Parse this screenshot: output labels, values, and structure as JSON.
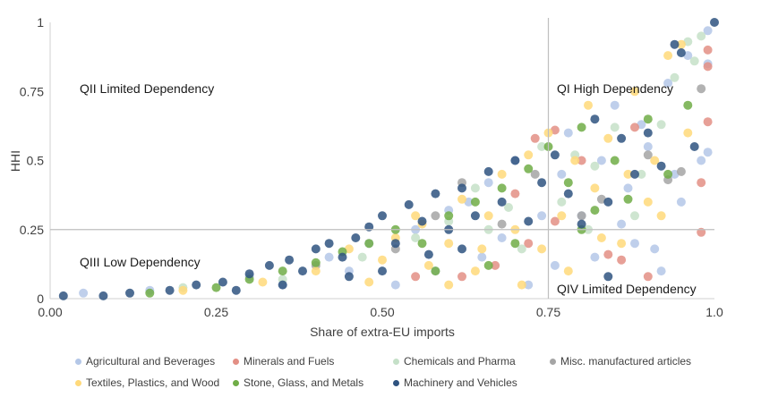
{
  "chart_data": {
    "type": "scatter",
    "title": "",
    "xlabel": "Share of extra-EU imports",
    "ylabel": "HHI",
    "xlim": [
      0,
      1
    ],
    "ylim": [
      0,
      1
    ],
    "x_ticks": [
      "0.00",
      "0.25",
      "0.50",
      "0.75",
      "1.0"
    ],
    "x_tick_values": [
      0,
      0.25,
      0.5,
      0.75,
      1.0
    ],
    "y_ticks": [
      "0",
      "0.25",
      "0.5",
      "0.75",
      "1"
    ],
    "y_tick_values": [
      0,
      0.25,
      0.5,
      0.75,
      1
    ],
    "reference_lines": {
      "x": 0.75,
      "y": 0.25
    },
    "quadrants": {
      "q1": "QI High Dependency",
      "q2": "QII Limited Dependency",
      "q3": "QIII Low Dependency",
      "q4": "QIV Limited Dependency"
    },
    "legend_position": "bottom",
    "series": [
      {
        "name": "Agricultural and Beverages",
        "color": "#b4c7e7",
        "points": [
          [
            0.05,
            0.02
          ],
          [
            0.15,
            0.03
          ],
          [
            0.3,
            0.08
          ],
          [
            0.42,
            0.15
          ],
          [
            0.48,
            0.2
          ],
          [
            0.55,
            0.25
          ],
          [
            0.6,
            0.32
          ],
          [
            0.63,
            0.35
          ],
          [
            0.66,
            0.42
          ],
          [
            0.7,
            0.5
          ],
          [
            0.72,
            0.05
          ],
          [
            0.78,
            0.6
          ],
          [
            0.8,
            0.3
          ],
          [
            0.82,
            0.15
          ],
          [
            0.85,
            0.7
          ],
          [
            0.87,
            0.4
          ],
          [
            0.88,
            0.2
          ],
          [
            0.9,
            0.55
          ],
          [
            0.92,
            0.1
          ],
          [
            0.93,
            0.78
          ],
          [
            0.95,
            0.35
          ],
          [
            0.96,
            0.88
          ],
          [
            0.98,
            0.5
          ],
          [
            0.99,
            0.97
          ],
          [
            0.99,
            0.85
          ],
          [
            0.99,
            0.53
          ],
          [
            0.91,
            0.18
          ],
          [
            0.86,
            0.27
          ],
          [
            0.76,
            0.12
          ],
          [
            0.74,
            0.3
          ],
          [
            0.68,
            0.22
          ],
          [
            0.58,
            0.1
          ],
          [
            0.52,
            0.05
          ],
          [
            0.45,
            0.1
          ],
          [
            0.35,
            0.05
          ],
          [
            0.83,
            0.5
          ],
          [
            0.89,
            0.63
          ],
          [
            0.94,
            0.45
          ],
          [
            0.77,
            0.45
          ],
          [
            0.65,
            0.15
          ]
        ]
      },
      {
        "name": "Minerals and Fuels",
        "color": "#e38f85",
        "points": [
          [
            0.62,
            0.08
          ],
          [
            0.67,
            0.12
          ],
          [
            0.72,
            0.2
          ],
          [
            0.76,
            0.28
          ],
          [
            0.8,
            0.5
          ],
          [
            0.84,
            0.16
          ],
          [
            0.86,
            0.14
          ],
          [
            0.9,
            0.08
          ],
          [
            0.98,
            0.42
          ],
          [
            0.99,
            0.64
          ],
          [
            0.99,
            0.84
          ],
          [
            0.99,
            0.9
          ],
          [
            0.98,
            0.24
          ],
          [
            0.7,
            0.38
          ],
          [
            0.55,
            0.08
          ],
          [
            0.73,
            0.58
          ],
          [
            0.76,
            0.61
          ],
          [
            0.88,
            0.62
          ]
        ]
      },
      {
        "name": "Chemicals and Pharma",
        "color": "#c5e0c8",
        "points": [
          [
            0.2,
            0.04
          ],
          [
            0.35,
            0.07
          ],
          [
            0.47,
            0.15
          ],
          [
            0.55,
            0.22
          ],
          [
            0.6,
            0.28
          ],
          [
            0.64,
            0.4
          ],
          [
            0.69,
            0.33
          ],
          [
            0.74,
            0.55
          ],
          [
            0.79,
            0.52
          ],
          [
            0.82,
            0.48
          ],
          [
            0.85,
            0.62
          ],
          [
            0.89,
            0.45
          ],
          [
            0.92,
            0.63
          ],
          [
            0.94,
            0.8
          ],
          [
            0.96,
            0.93
          ],
          [
            0.97,
            0.86
          ],
          [
            0.98,
            0.95
          ],
          [
            0.88,
            0.3
          ],
          [
            0.81,
            0.25
          ],
          [
            0.77,
            0.35
          ],
          [
            0.71,
            0.18
          ],
          [
            0.66,
            0.25
          ]
        ]
      },
      {
        "name": "Misc. manufactured articles",
        "color": "#a5a5a5",
        "points": [
          [
            0.4,
            0.12
          ],
          [
            0.52,
            0.18
          ],
          [
            0.58,
            0.3
          ],
          [
            0.62,
            0.42
          ],
          [
            0.68,
            0.27
          ],
          [
            0.73,
            0.45
          ],
          [
            0.83,
            0.36
          ],
          [
            0.9,
            0.52
          ],
          [
            0.95,
            0.46
          ],
          [
            0.98,
            0.76
          ],
          [
            0.93,
            0.43
          ],
          [
            0.8,
            0.3
          ]
        ]
      },
      {
        "name": "Textiles, Plastics, and Wood",
        "color": "#ffd97a",
        "points": [
          [
            0.2,
            0.03
          ],
          [
            0.32,
            0.06
          ],
          [
            0.4,
            0.1
          ],
          [
            0.45,
            0.18
          ],
          [
            0.5,
            0.14
          ],
          [
            0.52,
            0.22
          ],
          [
            0.55,
            0.3
          ],
          [
            0.57,
            0.12
          ],
          [
            0.6,
            0.2
          ],
          [
            0.62,
            0.36
          ],
          [
            0.64,
            0.1
          ],
          [
            0.66,
            0.3
          ],
          [
            0.68,
            0.45
          ],
          [
            0.7,
            0.25
          ],
          [
            0.72,
            0.52
          ],
          [
            0.74,
            0.18
          ],
          [
            0.75,
            0.6
          ],
          [
            0.77,
            0.3
          ],
          [
            0.79,
            0.5
          ],
          [
            0.81,
            0.7
          ],
          [
            0.82,
            0.4
          ],
          [
            0.84,
            0.58
          ],
          [
            0.86,
            0.2
          ],
          [
            0.88,
            0.75
          ],
          [
            0.9,
            0.35
          ],
          [
            0.91,
            0.5
          ],
          [
            0.93,
            0.88
          ],
          [
            0.95,
            0.92
          ],
          [
            0.96,
            0.6
          ],
          [
            0.92,
            0.3
          ],
          [
            0.87,
            0.45
          ],
          [
            0.83,
            0.22
          ],
          [
            0.78,
            0.1
          ],
          [
            0.71,
            0.05
          ],
          [
            0.6,
            0.05
          ],
          [
            0.48,
            0.06
          ],
          [
            0.56,
            0.27
          ],
          [
            0.65,
            0.18
          ]
        ]
      },
      {
        "name": "Stone, Glass, and Metals",
        "color": "#70ad47",
        "points": [
          [
            0.15,
            0.02
          ],
          [
            0.25,
            0.04
          ],
          [
            0.3,
            0.07
          ],
          [
            0.35,
            0.1
          ],
          [
            0.4,
            0.13
          ],
          [
            0.44,
            0.17
          ],
          [
            0.48,
            0.2
          ],
          [
            0.52,
            0.25
          ],
          [
            0.56,
            0.2
          ],
          [
            0.6,
            0.3
          ],
          [
            0.64,
            0.35
          ],
          [
            0.68,
            0.4
          ],
          [
            0.72,
            0.47
          ],
          [
            0.75,
            0.55
          ],
          [
            0.78,
            0.42
          ],
          [
            0.8,
            0.25
          ],
          [
            0.82,
            0.32
          ],
          [
            0.85,
            0.5
          ],
          [
            0.87,
            0.36
          ],
          [
            0.9,
            0.65
          ],
          [
            0.93,
            0.45
          ],
          [
            0.96,
            0.7
          ],
          [
            0.7,
            0.2
          ],
          [
            0.66,
            0.12
          ],
          [
            0.58,
            0.1
          ],
          [
            0.8,
            0.62
          ]
        ]
      },
      {
        "name": "Machinery and Vehicles",
        "color": "#2f5380",
        "points": [
          [
            0.02,
            0.01
          ],
          [
            0.08,
            0.01
          ],
          [
            0.12,
            0.02
          ],
          [
            0.18,
            0.03
          ],
          [
            0.22,
            0.05
          ],
          [
            0.26,
            0.06
          ],
          [
            0.3,
            0.09
          ],
          [
            0.33,
            0.12
          ],
          [
            0.36,
            0.14
          ],
          [
            0.38,
            0.1
          ],
          [
            0.4,
            0.18
          ],
          [
            0.42,
            0.2
          ],
          [
            0.44,
            0.15
          ],
          [
            0.46,
            0.22
          ],
          [
            0.48,
            0.26
          ],
          [
            0.5,
            0.3
          ],
          [
            0.52,
            0.2
          ],
          [
            0.54,
            0.34
          ],
          [
            0.56,
            0.28
          ],
          [
            0.58,
            0.38
          ],
          [
            0.6,
            0.25
          ],
          [
            0.62,
            0.4
          ],
          [
            0.64,
            0.3
          ],
          [
            0.66,
            0.46
          ],
          [
            0.68,
            0.35
          ],
          [
            0.7,
            0.5
          ],
          [
            0.72,
            0.28
          ],
          [
            0.74,
            0.42
          ],
          [
            0.76,
            0.52
          ],
          [
            0.78,
            0.38
          ],
          [
            0.8,
            0.27
          ],
          [
            0.82,
            0.65
          ],
          [
            0.84,
            0.35
          ],
          [
            0.86,
            0.58
          ],
          [
            0.88,
            0.45
          ],
          [
            0.9,
            0.6
          ],
          [
            0.92,
            0.48
          ],
          [
            0.94,
            0.92
          ],
          [
            0.95,
            0.89
          ],
          [
            0.97,
            0.55
          ],
          [
            1.0,
            1.0
          ],
          [
            0.84,
            0.08
          ],
          [
            0.57,
            0.16
          ],
          [
            0.5,
            0.1
          ],
          [
            0.45,
            0.08
          ],
          [
            0.35,
            0.05
          ],
          [
            0.28,
            0.03
          ],
          [
            0.62,
            0.18
          ]
        ]
      }
    ]
  }
}
